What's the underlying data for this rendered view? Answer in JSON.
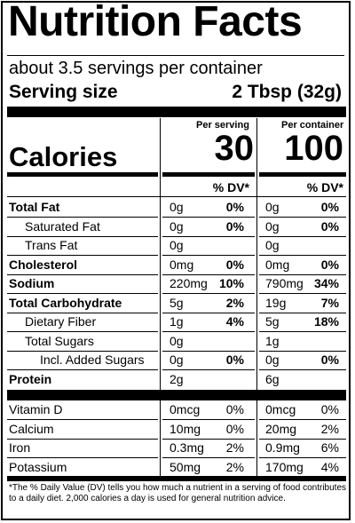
{
  "title": "Nutrition Facts",
  "servings_per_container": "about 3.5 servings per container",
  "serving_size_label": "Serving size",
  "serving_size_value": "2 Tbsp (32g)",
  "col_per_serving": "Per serving",
  "col_per_container": "Per container",
  "calories_label": "Calories",
  "calories_serving": "30",
  "calories_container": "100",
  "dv_header": "% DV*",
  "nutrients": [
    {
      "name": "Total Fat",
      "bold": true,
      "indent": 0,
      "s_amt": "0g",
      "s_dv": "0%",
      "c_amt": "0g",
      "c_dv": "0%"
    },
    {
      "name": "Saturated Fat",
      "bold": false,
      "indent": 1,
      "s_amt": "0g",
      "s_dv": "0%",
      "c_amt": "0g",
      "c_dv": "0%"
    },
    {
      "name": "Trans Fat",
      "bold": false,
      "indent": 1,
      "s_amt": "0g",
      "s_dv": "",
      "c_amt": "0g",
      "c_dv": ""
    },
    {
      "name": "Cholesterol",
      "bold": true,
      "indent": 0,
      "s_amt": "0mg",
      "s_dv": "0%",
      "c_amt": "0mg",
      "c_dv": "0%"
    },
    {
      "name": "Sodium",
      "bold": true,
      "indent": 0,
      "s_amt": "220mg",
      "s_dv": "10%",
      "c_amt": "790mg",
      "c_dv": "34%"
    },
    {
      "name": "Total Carbohydrate",
      "bold": true,
      "indent": 0,
      "s_amt": "5g",
      "s_dv": "2%",
      "c_amt": "19g",
      "c_dv": "7%"
    },
    {
      "name": "Dietary Fiber",
      "bold": false,
      "indent": 1,
      "s_amt": "1g",
      "s_dv": "4%",
      "c_amt": "5g",
      "c_dv": "18%"
    },
    {
      "name": "Total Sugars",
      "bold": false,
      "indent": 1,
      "s_amt": "0g",
      "s_dv": "",
      "c_amt": "1g",
      "c_dv": ""
    },
    {
      "name": "Incl. Added Sugars",
      "bold": false,
      "indent": 2,
      "s_amt": "0g",
      "s_dv": "0%",
      "c_amt": "0g",
      "c_dv": "0%"
    },
    {
      "name": "Protein",
      "bold": true,
      "indent": 0,
      "s_amt": "2g",
      "s_dv": "",
      "c_amt": "6g",
      "c_dv": ""
    }
  ],
  "vitamins": [
    {
      "name": "Vitamin D",
      "s_amt": "0mcg",
      "s_dv": "0%",
      "c_amt": "0mcg",
      "c_dv": "0%"
    },
    {
      "name": "Calcium",
      "s_amt": "10mg",
      "s_dv": "0%",
      "c_amt": "20mg",
      "c_dv": "2%"
    },
    {
      "name": "Iron",
      "s_amt": "0.3mg",
      "s_dv": "2%",
      "c_amt": "0.9mg",
      "c_dv": "6%"
    },
    {
      "name": "Potassium",
      "s_amt": "50mg",
      "s_dv": "2%",
      "c_amt": "170mg",
      "c_dv": "4%"
    }
  ],
  "footnote": "*The % Daily Value (DV) tells you how much a nutrient in a serving of food contributes to a daily diet. 2,000 calories a day is used for general nutrition advice."
}
